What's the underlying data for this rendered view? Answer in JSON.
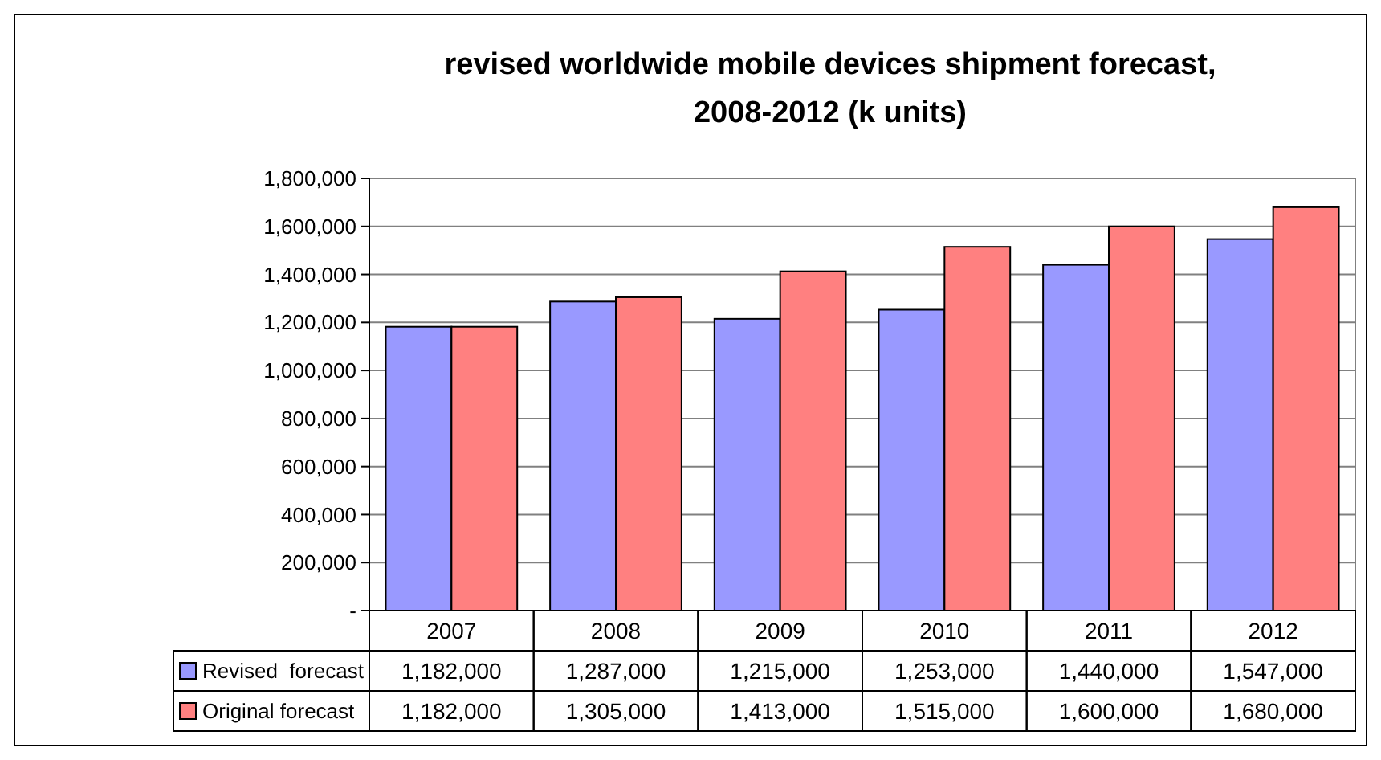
{
  "chart_data": {
    "type": "bar",
    "title": "revised worldwide mobile devices shipment forecast, 2008-2012 (k units)",
    "categories": [
      "2007",
      "2008",
      "2009",
      "2010",
      "2011",
      "2012"
    ],
    "series": [
      {
        "name": "Revised  forecast",
        "color": "#9999ff",
        "values": [
          1182000,
          1287000,
          1215000,
          1253000,
          1440000,
          1547000
        ],
        "value_labels": [
          "1,182,000",
          "1,287,000",
          "1,215,000",
          "1,253,000",
          "1,440,000",
          "1,547,000"
        ]
      },
      {
        "name": "Original forecast",
        "color": "#ff8080",
        "values": [
          1182000,
          1305000,
          1413000,
          1515000,
          1600000,
          1680000
        ],
        "value_labels": [
          "1,182,000",
          "1,305,000",
          "1,413,000",
          "1,515,000",
          "1,600,000",
          "1,680,000"
        ]
      }
    ],
    "ylim": [
      0,
      1800000
    ],
    "yticks": [
      {
        "value": 0,
        "label": "-"
      },
      {
        "value": 200000,
        "label": "200,000"
      },
      {
        "value": 400000,
        "label": "400,000"
      },
      {
        "value": 600000,
        "label": "600,000"
      },
      {
        "value": 800000,
        "label": "800,000"
      },
      {
        "value": 1000000,
        "label": "1,000,000"
      },
      {
        "value": 1200000,
        "label": "1,200,000"
      },
      {
        "value": 1400000,
        "label": "1,400,000"
      },
      {
        "value": 1600000,
        "label": "1,600,000"
      },
      {
        "value": 1800000,
        "label": "1,800,000"
      }
    ],
    "grid": "y",
    "legend": "bottom"
  }
}
